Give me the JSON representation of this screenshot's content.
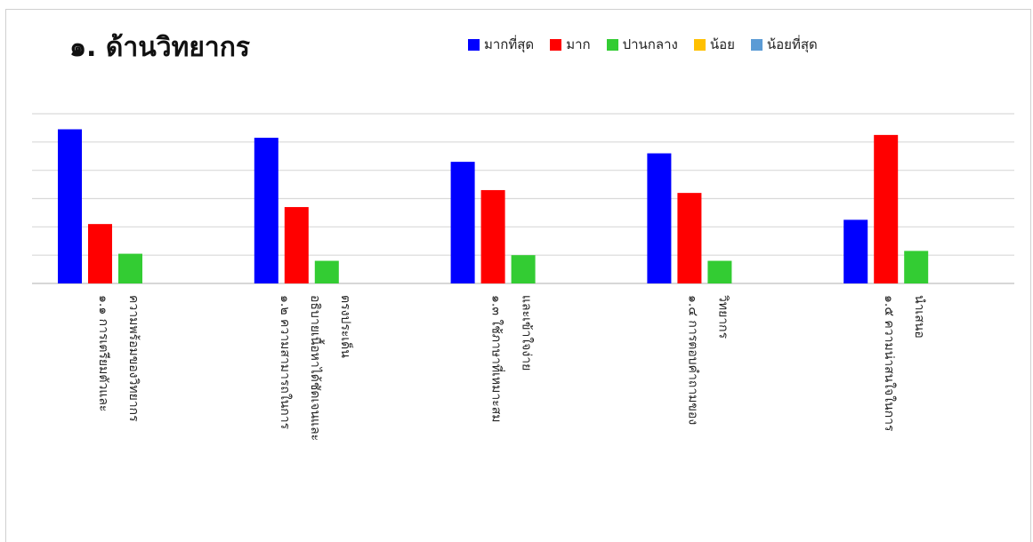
{
  "chart_data": {
    "type": "bar",
    "title": "๑. ด้านวิทยากร",
    "legend_position": "top-right",
    "grid": true,
    "categories": [
      [
        "๑.๑ การเตรียมตัวและ",
        "ความพร้อมของวิทยากร"
      ],
      [
        "๑.๒ ความสามารถในการ",
        "อธิบายเนื้อหาได้ชัดเจนและ",
        "ตรงประเด็น"
      ],
      [
        "๑.๓ ใช้ภาษาที่เหมาะสม",
        "และเข้าใจง่าย"
      ],
      [
        "๑.๔ การตอบคำถามของ",
        "วิทยากร"
      ],
      [
        "๑.๕ ความน่าสนใจในการ",
        "นำเสนอ"
      ]
    ],
    "ylim": [
      0,
      60
    ],
    "y_gridlines": [
      0,
      10,
      20,
      30,
      40,
      50,
      60
    ],
    "series": [
      {
        "name": "มากที่สุด",
        "color": "#0000ff",
        "values": [
          54.5,
          51.5,
          43,
          46,
          22.5
        ]
      },
      {
        "name": "มาก",
        "color": "#ff0000",
        "values": [
          21,
          27,
          33,
          32,
          52.5
        ]
      },
      {
        "name": "ปานกลาง",
        "color": "#33cc33",
        "values": [
          10.5,
          8,
          10,
          8,
          11.5
        ]
      },
      {
        "name": "น้อย",
        "color": "#ffc000",
        "values": [
          0,
          0,
          0,
          0,
          0
        ]
      },
      {
        "name": "น้อยที่สุด",
        "color": "#5b9bd5",
        "values": [
          0,
          0,
          0,
          0,
          0
        ]
      }
    ]
  }
}
